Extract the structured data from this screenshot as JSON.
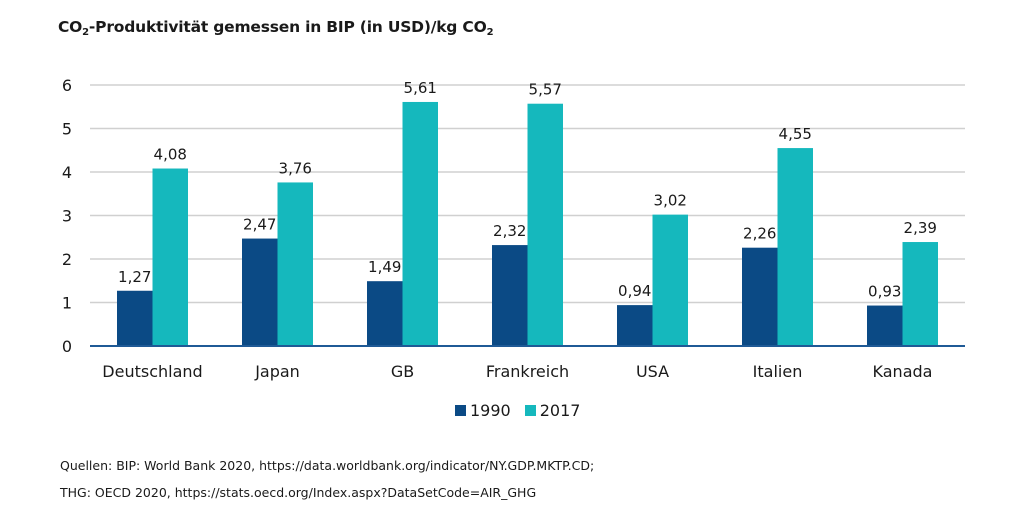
{
  "chart_data": {
    "type": "bar",
    "title_parts": [
      "CO",
      "2",
      "-Produktivität gemessen in BIP (in USD)/kg CO",
      "2"
    ],
    "title": "CO2-Produktivität gemessen in BIP (in USD)/kg CO2",
    "xlabel": "",
    "ylabel": "",
    "ylim": [
      0,
      6
    ],
    "yticks": [
      0,
      1,
      2,
      3,
      4,
      5,
      6
    ],
    "grid": true,
    "legend_position": "bottom-center",
    "categories": [
      "Deutschland",
      "Japan",
      "GB",
      "Frankreich",
      "USA",
      "Italien",
      "Kanada"
    ],
    "series": [
      {
        "name": "1990",
        "color": "#0b4a85",
        "values": [
          1.27,
          2.47,
          1.49,
          2.32,
          0.94,
          2.26,
          0.93
        ],
        "labels": [
          "1,27",
          "2,47",
          "1,49",
          "2,32",
          "0,94",
          "2,26",
          "0,93"
        ]
      },
      {
        "name": "2017",
        "color": "#15b8bd",
        "values": [
          4.08,
          3.76,
          5.61,
          5.57,
          3.02,
          4.55,
          2.39
        ],
        "labels": [
          "4,08",
          "3,76",
          "5,61",
          "5,57",
          "3,02",
          "4,55",
          "2,39"
        ]
      }
    ]
  },
  "sources": [
    "Quellen: BIP: World Bank 2020, https://data.worldbank.org/indicator/NY.GDP.MKTP.CD;",
    "THG: OECD 2020, https://stats.oecd.org/Index.aspx?DataSetCode=AIR_GHG"
  ],
  "colors": {
    "grid": "#d0d0d0",
    "axis": "#1f5a96"
  }
}
